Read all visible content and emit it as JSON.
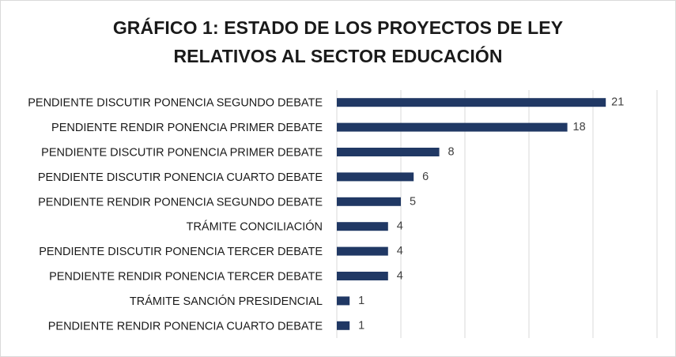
{
  "chart_data": {
    "type": "bar",
    "orientation": "horizontal",
    "title_lines": [
      "GRÁFICO 1: ESTADO DE LOS PROYECTOS DE LEY",
      "RELATIVOS AL SECTOR EDUCACIÓN"
    ],
    "categories": [
      "PENDIENTE DISCUTIR PONENCIA SEGUNDO DEBATE",
      "PENDIENTE RENDIR PONENCIA PRIMER DEBATE",
      "PENDIENTE DISCUTIR PONENCIA PRIMER DEBATE",
      "PENDIENTE DISCUTIR PONENCIA CUARTO DEBATE",
      "PENDIENTE RENDIR PONENCIA SEGUNDO DEBATE",
      "TRÁMITE CONCILIACIÓN",
      "PENDIENTE DISCUTIR PONENCIA TERCER DEBATE",
      "PENDIENTE RENDIR PONENCIA TERCER DEBATE",
      "TRÁMITE SANCIÓN PRESIDENCIAL",
      "PENDIENTE RENDIR PONENCIA CUARTO DEBATE"
    ],
    "values": [
      21,
      18,
      8,
      6,
      5,
      4,
      4,
      4,
      1,
      1
    ],
    "xlim": [
      0,
      25
    ],
    "grid": true,
    "bar_color": "#203864",
    "gridline_color": "#d9d9d9"
  }
}
